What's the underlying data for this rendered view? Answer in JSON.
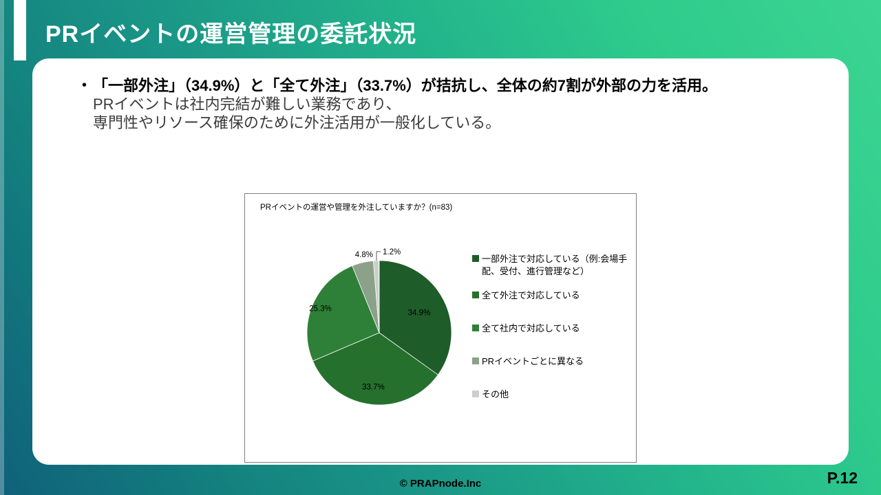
{
  "slide": {
    "title": "PRイベントの運営管理の委託状況",
    "footer_copyright": "© PRAPnode.Inc",
    "page_number": "P.12"
  },
  "bullet": {
    "marker": "•",
    "line1": "「一部外注」（34.9%）と「全て外注」（33.7%）が拮抗し、全体の約7割が外部の力を活用。",
    "line2": "PRイベントは社内完結が難しい業務であり、",
    "line3": "専門性やリソース確保のために外注活用が一般化している。"
  },
  "chart_data": {
    "type": "pie",
    "title": "PRイベントの運営や管理を外注していますか？(n=83)",
    "sample_size": 83,
    "categories": [
      "一部外注で対応している（例:会場手配、受付、進行管理など）",
      "全て外注で対応している",
      "全て社内で対応している",
      "PRイベントごとに異なる",
      "その他"
    ],
    "values": [
      34.9,
      33.7,
      25.3,
      4.8,
      1.2
    ],
    "labels": [
      "34.9%",
      "33.7%",
      "25.3%",
      "4.8%",
      "1.2%"
    ],
    "colors": [
      "#1E5C29",
      "#26702E",
      "#2E8038",
      "#8BA18A",
      "#C9D0C8"
    ],
    "legend_position": "right",
    "start_angle_deg": 0,
    "direction": "clockwise"
  },
  "theme": {
    "background_teal_dark": "#0f617a",
    "background_green_bright": "#3cd492",
    "card_background": "#ffffff",
    "chart_border": "#7f7f7f",
    "title_color": "#ffffff"
  }
}
